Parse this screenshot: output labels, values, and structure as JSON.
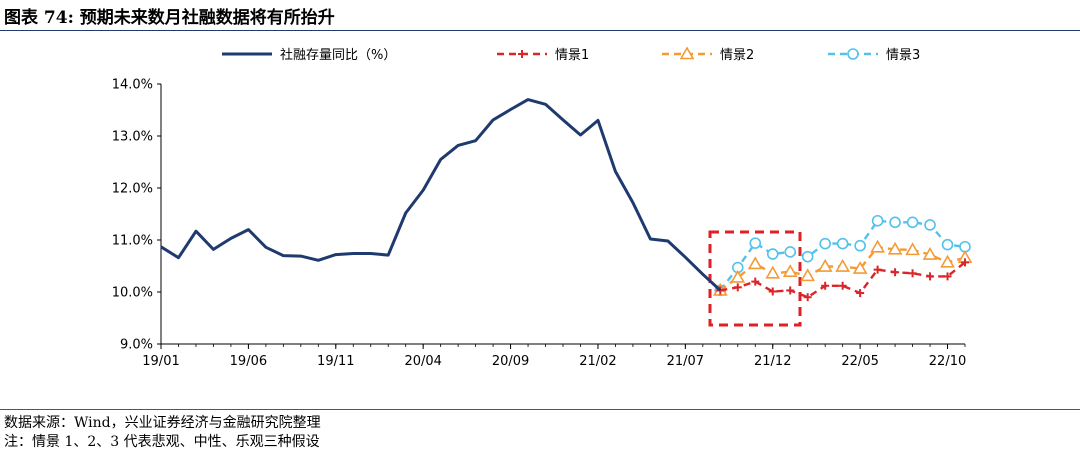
{
  "header": {
    "title": "图表 74:  预期未来数月社融数据将有所抬升"
  },
  "footer": {
    "source": "数据来源：Wind，兴业证券经济与金融研究院整理",
    "note": "注：情景 1、2、3 代表悲观、中性、乐观三种假设"
  },
  "colors": {
    "main": "#1f3a6e",
    "s1": "#d9262b",
    "s2": "#f39b37",
    "s3": "#52c2ec",
    "highlight": "#e01f26"
  },
  "chart_data": {
    "type": "line",
    "xlabels": [
      "19/01",
      "19/06",
      "19/11",
      "20/04",
      "20/09",
      "21/02",
      "21/07",
      "21/12",
      "22/05",
      "22/10"
    ],
    "ylim": [
      9.0,
      14.0
    ],
    "yticks": [
      "9.0%",
      "10.0%",
      "11.0%",
      "12.0%",
      "13.0%",
      "14.0%"
    ],
    "grid": false,
    "legend": "top",
    "series": [
      {
        "name": "社融存量同比（%）",
        "start": "19/01",
        "values": [
          10.87,
          10.66,
          11.17,
          10.82,
          11.03,
          11.2,
          10.86,
          10.7,
          10.69,
          10.61,
          10.72,
          10.74,
          10.74,
          10.71,
          11.52,
          11.96,
          12.55,
          12.82,
          12.91,
          13.31,
          13.51,
          13.7,
          13.61,
          13.31,
          13.02,
          13.3,
          12.32,
          11.72,
          11.02,
          10.98,
          10.67,
          10.34,
          10.03
        ]
      },
      {
        "name": "情景1",
        "start": "21/09",
        "values": [
          10.03,
          10.09,
          10.2,
          10.01,
          10.03,
          9.9,
          10.12,
          10.12,
          9.98,
          10.43,
          10.38,
          10.36,
          10.3,
          10.3,
          10.57
        ]
      },
      {
        "name": "情景2",
        "start": "21/09",
        "values": [
          10.03,
          10.28,
          10.54,
          10.36,
          10.39,
          10.31,
          10.49,
          10.49,
          10.45,
          10.86,
          10.82,
          10.81,
          10.72,
          10.57,
          10.66
        ]
      },
      {
        "name": "情景3",
        "start": "21/09",
        "values": [
          10.03,
          10.47,
          10.94,
          10.73,
          10.77,
          10.68,
          10.93,
          10.93,
          10.89,
          11.37,
          11.34,
          11.34,
          11.29,
          10.91,
          10.87
        ]
      }
    ]
  }
}
